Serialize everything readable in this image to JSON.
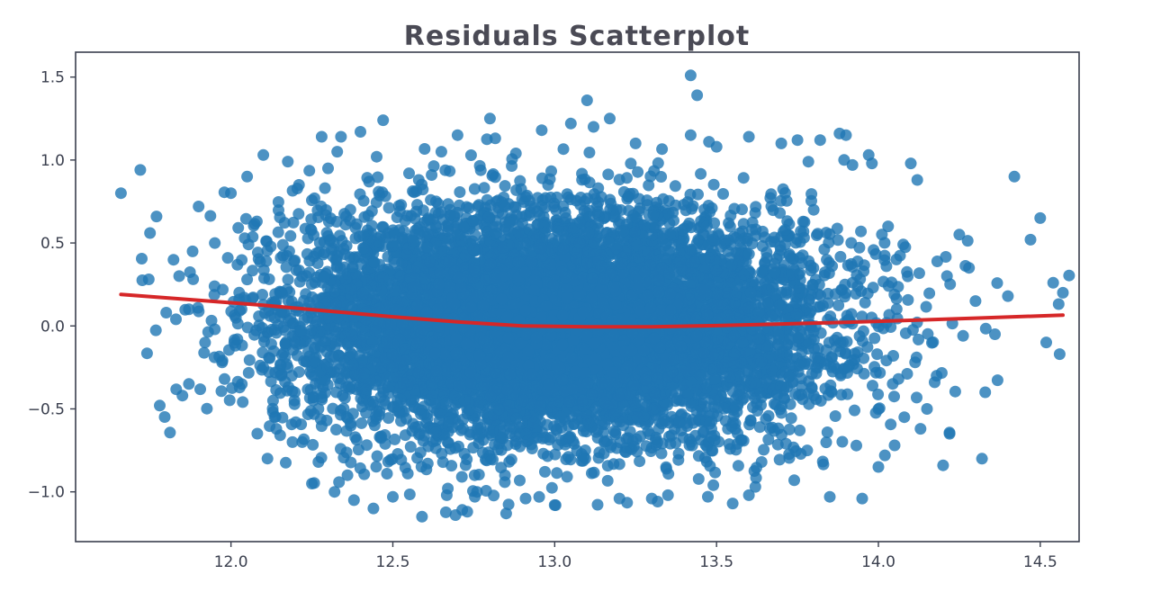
{
  "chart_data": {
    "type": "scatter",
    "title": "Residuals Scatterplot",
    "xlabel": "",
    "ylabel": "",
    "xlim": [
      11.52,
      14.62
    ],
    "ylim": [
      -1.3,
      1.65
    ],
    "x_ticks": [
      12.0,
      12.5,
      13.0,
      13.5,
      14.0,
      14.5
    ],
    "x_tick_labels": [
      "12.0",
      "12.5",
      "13.0",
      "13.5",
      "14.0",
      "14.5"
    ],
    "y_ticks": [
      1.5,
      1.0,
      0.5,
      0.0,
      -0.5,
      -1.0
    ],
    "y_tick_labels": [
      "1.5",
      "1.0",
      "0.5",
      "0.0",
      "−0.5",
      "−1.0"
    ],
    "grid": false,
    "colors": {
      "points": "#1f77b4",
      "fit_line": "#d62728",
      "axes": "#3a3f4e"
    },
    "series": [
      {
        "kind": "points",
        "x": [
          11.66,
          11.72,
          11.77,
          11.75,
          11.78,
          11.85,
          11.87,
          11.9,
          11.95,
          12.0,
          12.05,
          12.1,
          12.08,
          11.84,
          11.87,
          11.8,
          11.83,
          11.95,
          12.02,
          11.92,
          11.98,
          12.13,
          12.1,
          12.2,
          12.27,
          12.22,
          13.1,
          13.42,
          13.44,
          13.17,
          12.47,
          12.8,
          12.4,
          12.28,
          12.34,
          12.55,
          12.58,
          12.62,
          12.88,
          12.91,
          13.2,
          13.3,
          13.55,
          13.49,
          13.85,
          13.95,
          14.2,
          14.32,
          14.42,
          14.5,
          14.47,
          14.54,
          14.57,
          14.56,
          14.28,
          14.25,
          14.1,
          14.12,
          13.9,
          13.97,
          13.88,
          14.0,
          13.74,
          13.6,
          13.78,
          14.05,
          14.22,
          14.33,
          14.36,
          14.4,
          14.3,
          14.15,
          14.18,
          14.08,
          14.03,
          13.8,
          12.21,
          12.18,
          12.25,
          12.32,
          12.38,
          12.44,
          12.5,
          12.36,
          12.27,
          12.14,
          12.19,
          12.05,
          13.12,
          12.96,
          13.05,
          12.7,
          12.76,
          13.6,
          13.42,
          13.35,
          13.7,
          13.62,
          12.67,
          12.73,
          12.85,
          13.0,
          12.59,
          13.82,
          13.92,
          12.3,
          12.45,
          12.65,
          13.25,
          13.5,
          13.75,
          13.98,
          14.02,
          14.13
        ],
        "y": [
          0.8,
          0.94,
          0.66,
          0.56,
          -0.48,
          -0.42,
          -0.35,
          0.72,
          0.5,
          0.8,
          0.9,
          1.03,
          0.63,
          0.3,
          0.1,
          0.08,
          0.04,
          -0.02,
          -0.08,
          -0.1,
          -0.32,
          -0.45,
          -0.25,
          -0.58,
          -0.5,
          -0.7,
          1.36,
          1.51,
          1.39,
          1.25,
          1.24,
          1.25,
          1.17,
          1.14,
          1.14,
          0.92,
          0.88,
          0.91,
          1.04,
          -1.04,
          -1.04,
          -1.04,
          -1.07,
          -0.96,
          -1.03,
          -1.04,
          -0.84,
          -0.8,
          0.9,
          0.65,
          0.52,
          0.26,
          0.2,
          -0.17,
          0.35,
          0.55,
          0.98,
          0.88,
          1.15,
          1.03,
          1.16,
          -0.85,
          -0.93,
          -1.02,
          -0.75,
          -0.72,
          -0.65,
          -0.4,
          -0.05,
          0.18,
          0.15,
          -0.5,
          -0.3,
          -0.55,
          0.6,
          0.7,
          0.85,
          0.45,
          -0.95,
          -1.0,
          -1.05,
          -1.1,
          -1.03,
          -0.9,
          -0.82,
          -0.62,
          -0.7,
          0.28,
          1.2,
          1.18,
          1.22,
          1.15,
          -1.0,
          1.14,
          1.15,
          -1.02,
          1.1,
          -0.97,
          -0.98,
          -1.12,
          -1.13,
          -1.08,
          -1.15,
          1.12,
          0.97,
          0.95,
          1.02,
          1.05,
          1.1,
          1.08,
          1.12,
          0.98,
          -0.78,
          -0.62
        ]
      },
      {
        "kind": "fit_line",
        "x": [
          11.66,
          11.9,
          12.1,
          12.3,
          12.5,
          12.7,
          12.9,
          13.1,
          13.3,
          13.5,
          13.7,
          13.9,
          14.1,
          14.3,
          14.57
        ],
        "y": [
          0.19,
          0.155,
          0.125,
          0.09,
          0.055,
          0.025,
          0.0,
          -0.005,
          -0.005,
          0.002,
          0.012,
          0.022,
          0.034,
          0.047,
          0.065
        ]
      }
    ]
  }
}
